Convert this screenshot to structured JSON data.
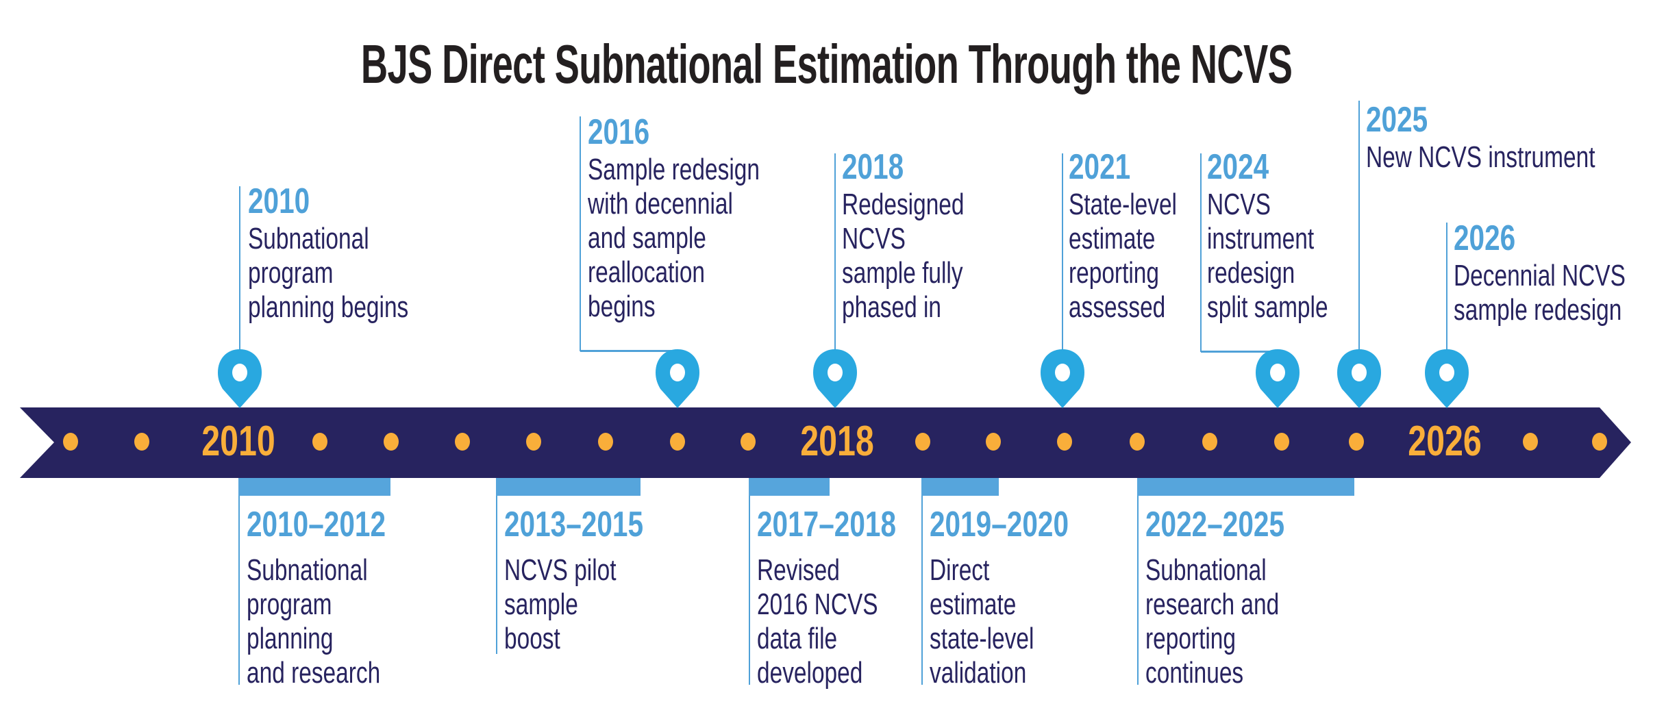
{
  "title": "BJS Direct Subnational Estimation Through the NCVS",
  "colors": {
    "band": "#27235f",
    "dot": "#f9ae3a",
    "pin": "#29a8e0",
    "year_text": "#4fa1d8",
    "bar": "#56a5dc",
    "text": "#27235f"
  },
  "band_labels": [
    "2010",
    "2018",
    "2026"
  ],
  "milestones": [
    {
      "year": "2010",
      "lines": [
        "Subnational",
        "program",
        "planning begins"
      ],
      "icon": "map-pin-icon"
    },
    {
      "year": "2016",
      "lines": [
        "Sample redesign",
        "with decennial",
        "and sample",
        "reallocation",
        "begins"
      ],
      "icon": "map-pin-icon"
    },
    {
      "year": "2018",
      "lines": [
        "Redesigned",
        "NCVS",
        "sample fully",
        "phased in"
      ],
      "icon": "map-pin-icon"
    },
    {
      "year": "2021",
      "lines": [
        "State-level",
        "estimate",
        "reporting",
        "assessed"
      ],
      "icon": "map-pin-icon"
    },
    {
      "year": "2024",
      "lines": [
        "NCVS",
        "instrument",
        "redesign",
        "split sample"
      ],
      "icon": "map-pin-icon"
    },
    {
      "year": "2025",
      "lines": [
        "New NCVS instrument"
      ],
      "icon": "map-pin-icon"
    },
    {
      "year": "2026",
      "lines": [
        "Decennial NCVS",
        "sample redesign"
      ],
      "icon": "map-pin-icon"
    }
  ],
  "periods": [
    {
      "years": "2010–2012",
      "lines": [
        "Subnational",
        "program",
        "planning",
        "and research"
      ]
    },
    {
      "years": "2013–2015",
      "lines": [
        "NCVS pilot",
        "sample",
        "boost"
      ]
    },
    {
      "years": "2017–2018",
      "lines": [
        "Revised",
        "2016 NCVS",
        "data file",
        "developed"
      ]
    },
    {
      "years": "2019–2020",
      "lines": [
        "Direct",
        "estimate",
        "state-level",
        "validation"
      ]
    },
    {
      "years": "2022–2025",
      "lines": [
        "Subnational",
        "research and",
        "reporting",
        "continues"
      ]
    }
  ]
}
